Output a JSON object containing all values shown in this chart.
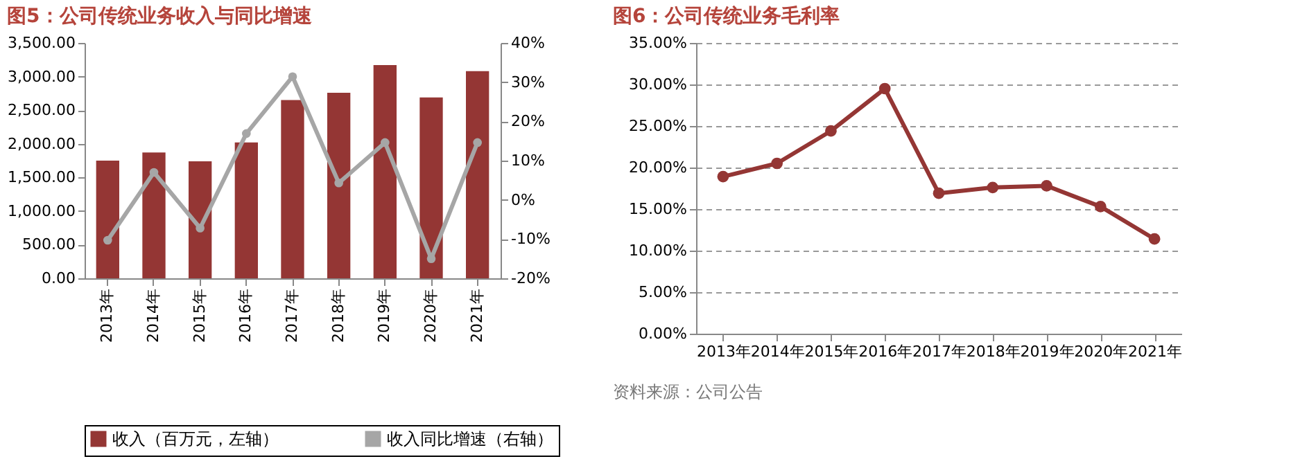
{
  "chart_data": [
    {
      "type": "bar",
      "title": "图5：公司传统业务收入与同比增速",
      "categories": [
        "2013年",
        "2014年",
        "2015年",
        "2016年",
        "2017年",
        "2018年",
        "2019年",
        "2020年",
        "2021年"
      ],
      "series": [
        {
          "name": "收入（百万元，左轴）",
          "type": "bar",
          "color": "#943634",
          "values": [
            1750,
            1870,
            1740,
            2020,
            2650,
            2760,
            3170,
            2690,
            3080
          ]
        },
        {
          "name": "收入同比增速（右轴）",
          "type": "line",
          "axis": "y2",
          "color": "#a6a6a6",
          "marker": "circle",
          "values": [
            -10.3,
            7.0,
            -7.2,
            16.9,
            31.4,
            4.3,
            14.6,
            -15.0,
            14.6
          ]
        }
      ],
      "ylim": [
        0,
        3500
      ],
      "yticks": [
        {
          "value": 0,
          "label": "0.00"
        },
        {
          "value": 500,
          "label": "500.00"
        },
        {
          "value": 1000,
          "label": "1,000.00"
        },
        {
          "value": 1500,
          "label": "1,500.00"
        },
        {
          "value": 2000,
          "label": "2,000.00"
        },
        {
          "value": 2500,
          "label": "2,500.00"
        },
        {
          "value": 3000,
          "label": "3,000.00"
        },
        {
          "value": 3500,
          "label": "3,500.00"
        }
      ],
      "y2lim": [
        -20,
        40
      ],
      "y2ticks": [
        {
          "value": -20,
          "label": "-20%"
        },
        {
          "value": -10,
          "label": "-10%"
        },
        {
          "value": 0,
          "label": "0%"
        },
        {
          "value": 10,
          "label": "10%"
        },
        {
          "value": 20,
          "label": "20%"
        },
        {
          "value": 30,
          "label": "30%"
        },
        {
          "value": 40,
          "label": "40%"
        }
      ],
      "grid": false,
      "legend": "bottom"
    },
    {
      "type": "line",
      "title": "图6：公司传统业务毛利率",
      "categories": [
        "2013年",
        "2014年",
        "2015年",
        "2016年",
        "2017年",
        "2018年",
        "2019年",
        "2020年",
        "2021年"
      ],
      "series": [
        {
          "color": "#943634",
          "values": [
            18.9,
            20.5,
            24.4,
            29.5,
            16.9,
            17.6,
            17.8,
            15.3,
            11.4
          ]
        }
      ],
      "ylim": [
        0,
        35
      ],
      "yticks": [
        {
          "value": 0,
          "label": "0.00%"
        },
        {
          "value": 5,
          "label": "5.00%"
        },
        {
          "value": 10,
          "label": "10.00%"
        },
        {
          "value": 15,
          "label": "15.00%"
        },
        {
          "value": 20,
          "label": "20.00%"
        },
        {
          "value": 25,
          "label": "25.00%"
        },
        {
          "value": 30,
          "label": "30.00%"
        },
        {
          "value": 35,
          "label": "35.00%"
        }
      ],
      "grid": "y",
      "marker": "circle",
      "legend": false,
      "annotations": [
        "资料来源：公司公告"
      ]
    }
  ]
}
